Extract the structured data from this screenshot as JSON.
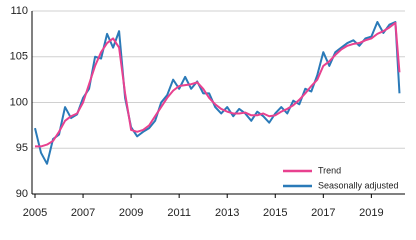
{
  "chart_data": {
    "type": "line",
    "x": [
      2005,
      2005.25,
      2005.5,
      2005.75,
      2006,
      2006.25,
      2006.5,
      2006.75,
      2007,
      2007.25,
      2007.5,
      2007.75,
      2008,
      2008.25,
      2008.5,
      2008.75,
      2009,
      2009.25,
      2009.5,
      2009.75,
      2010,
      2010.25,
      2010.5,
      2010.75,
      2011,
      2011.25,
      2011.5,
      2011.75,
      2012,
      2012.25,
      2012.5,
      2012.75,
      2013,
      2013.25,
      2013.5,
      2013.75,
      2014,
      2014.25,
      2014.5,
      2014.75,
      2015,
      2015.25,
      2015.5,
      2015.75,
      2016,
      2016.25,
      2016.5,
      2016.75,
      2017,
      2017.25,
      2017.5,
      2017.75,
      2018,
      2018.25,
      2018.5,
      2018.75,
      2019,
      2019.25,
      2019.5,
      2019.75,
      2020,
      2020.17
    ],
    "series": [
      {
        "name": "Trend",
        "color": "#e8418f",
        "values": [
          95.2,
          95.2,
          95.4,
          95.8,
          96.8,
          98.0,
          98.5,
          98.8,
          100.0,
          102.0,
          104.0,
          105.5,
          106.5,
          107.0,
          106.0,
          101.0,
          97.0,
          96.8,
          97.0,
          97.5,
          98.5,
          99.5,
          100.5,
          101.3,
          101.8,
          101.9,
          102.0,
          102.2,
          101.5,
          100.5,
          99.8,
          99.3,
          99.0,
          98.8,
          98.8,
          98.9,
          98.6,
          98.6,
          98.8,
          98.5,
          98.6,
          99.0,
          99.3,
          99.7,
          100.3,
          101.0,
          101.8,
          102.5,
          104.0,
          104.5,
          105.2,
          105.8,
          106.2,
          106.4,
          106.5,
          106.8,
          107.0,
          107.5,
          107.8,
          108.2,
          108.7,
          103.3
        ]
      },
      {
        "name": "Seasonally adjusted",
        "color": "#2a7ab8",
        "values": [
          97.2,
          94.5,
          93.3,
          96.0,
          96.5,
          99.5,
          98.3,
          98.7,
          100.5,
          101.5,
          105.0,
          104.8,
          107.5,
          106.0,
          107.8,
          100.5,
          97.3,
          96.3,
          96.8,
          97.2,
          98.0,
          100.0,
          100.8,
          102.5,
          101.5,
          102.8,
          101.5,
          102.3,
          101.0,
          101.0,
          99.5,
          98.8,
          99.5,
          98.5,
          99.3,
          98.8,
          98.0,
          99.0,
          98.5,
          97.8,
          98.8,
          99.5,
          98.8,
          100.2,
          99.8,
          101.5,
          101.2,
          103.0,
          105.5,
          104.0,
          105.5,
          106.0,
          106.5,
          106.8,
          106.2,
          107.0,
          107.2,
          108.8,
          107.6,
          108.5,
          108.8,
          101.0
        ]
      }
    ],
    "xlim": [
      2004.875,
      2020.4
    ],
    "xticks": [
      2005,
      2007,
      2009,
      2011,
      2013,
      2015,
      2017,
      2019
    ],
    "ylim": [
      90,
      110
    ],
    "yticks": [
      90,
      95,
      100,
      105,
      110
    ],
    "grid": true,
    "legend": "lower right"
  }
}
